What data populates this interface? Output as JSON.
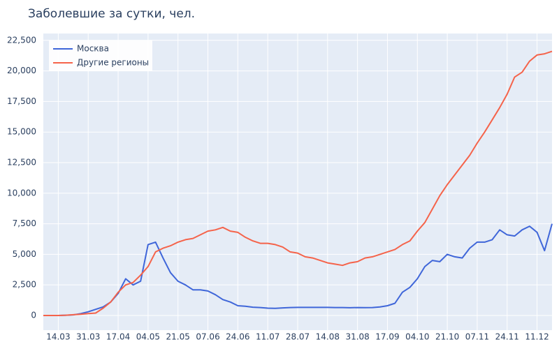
{
  "chart_data": {
    "type": "line",
    "title": "Заболевшие за сутки, чел.",
    "categories": [
      null,
      null,
      "14.03",
      null,
      null,
      null,
      "31.03",
      null,
      null,
      null,
      "17.04",
      null,
      null,
      null,
      "04.05",
      null,
      null,
      null,
      "21.05",
      null,
      null,
      null,
      "07.06",
      null,
      null,
      null,
      "24.06",
      null,
      null,
      null,
      "11.07",
      null,
      null,
      null,
      "28.07",
      null,
      null,
      null,
      "14.08",
      null,
      null,
      null,
      "31.08",
      null,
      null,
      null,
      "17.09",
      null,
      null,
      null,
      "04.10",
      null,
      null,
      null,
      "21.10",
      null,
      null,
      null,
      "07.11",
      null,
      null,
      null,
      "24.11",
      null,
      null,
      null,
      "11.12",
      null,
      null
    ],
    "series": [
      {
        "name": "Москва",
        "color": "#3f66d9",
        "values": [
          0,
          0,
          0,
          20,
          50,
          150,
          300,
          500,
          700,
          1100,
          1800,
          3000,
          2500,
          2800,
          5800,
          6000,
          4700,
          3500,
          2800,
          2500,
          2100,
          2100,
          2000,
          1700,
          1300,
          1100,
          800,
          750,
          680,
          650,
          600,
          580,
          620,
          650,
          660,
          660,
          660,
          660,
          660,
          650,
          650,
          630,
          650,
          640,
          650,
          700,
          800,
          1000,
          1900,
          2300,
          3000,
          4000,
          4500,
          4400,
          5000,
          4800,
          4700,
          5500,
          6000,
          6000,
          6200,
          7000,
          6600,
          6500,
          7000,
          7300,
          6800,
          5300,
          7500
        ]
      },
      {
        "name": "Другие регионы",
        "color": "#f5634a",
        "values": [
          0,
          0,
          0,
          20,
          60,
          100,
          150,
          200,
          600,
          1100,
          1900,
          2500,
          2700,
          3300,
          4000,
          5200,
          5500,
          5700,
          6000,
          6200,
          6300,
          6600,
          6900,
          7000,
          7200,
          6900,
          6800,
          6400,
          6100,
          5900,
          5900,
          5800,
          5600,
          5200,
          5100,
          4800,
          4700,
          4500,
          4300,
          4200,
          4100,
          4300,
          4400,
          4700,
          4800,
          5000,
          5200,
          5400,
          5800,
          6100,
          6900,
          7600,
          8700,
          9800,
          10700,
          11500,
          12300,
          13100,
          14100,
          15000,
          16000,
          17000,
          18100,
          19500,
          19900,
          20800,
          21300,
          21400,
          21600
        ]
      }
    ],
    "ylim": [
      -1200,
      23060
    ],
    "yticks": [
      0,
      {
        "value": 2500,
        "label": "2,500"
      },
      {
        "value": 5000,
        "label": "5,000"
      },
      {
        "value": 7500,
        "label": "7,500"
      },
      {
        "value": 10000,
        "label": "10,000"
      },
      {
        "value": 12500,
        "label": "12,500"
      },
      {
        "value": 15000,
        "label": "15,000"
      },
      {
        "value": 17500,
        "label": "17,500"
      },
      {
        "value": 20000,
        "label": "20,000"
      },
      {
        "value": 22500,
        "label": "22,500"
      }
    ],
    "grid": true,
    "legend": "top-left"
  }
}
